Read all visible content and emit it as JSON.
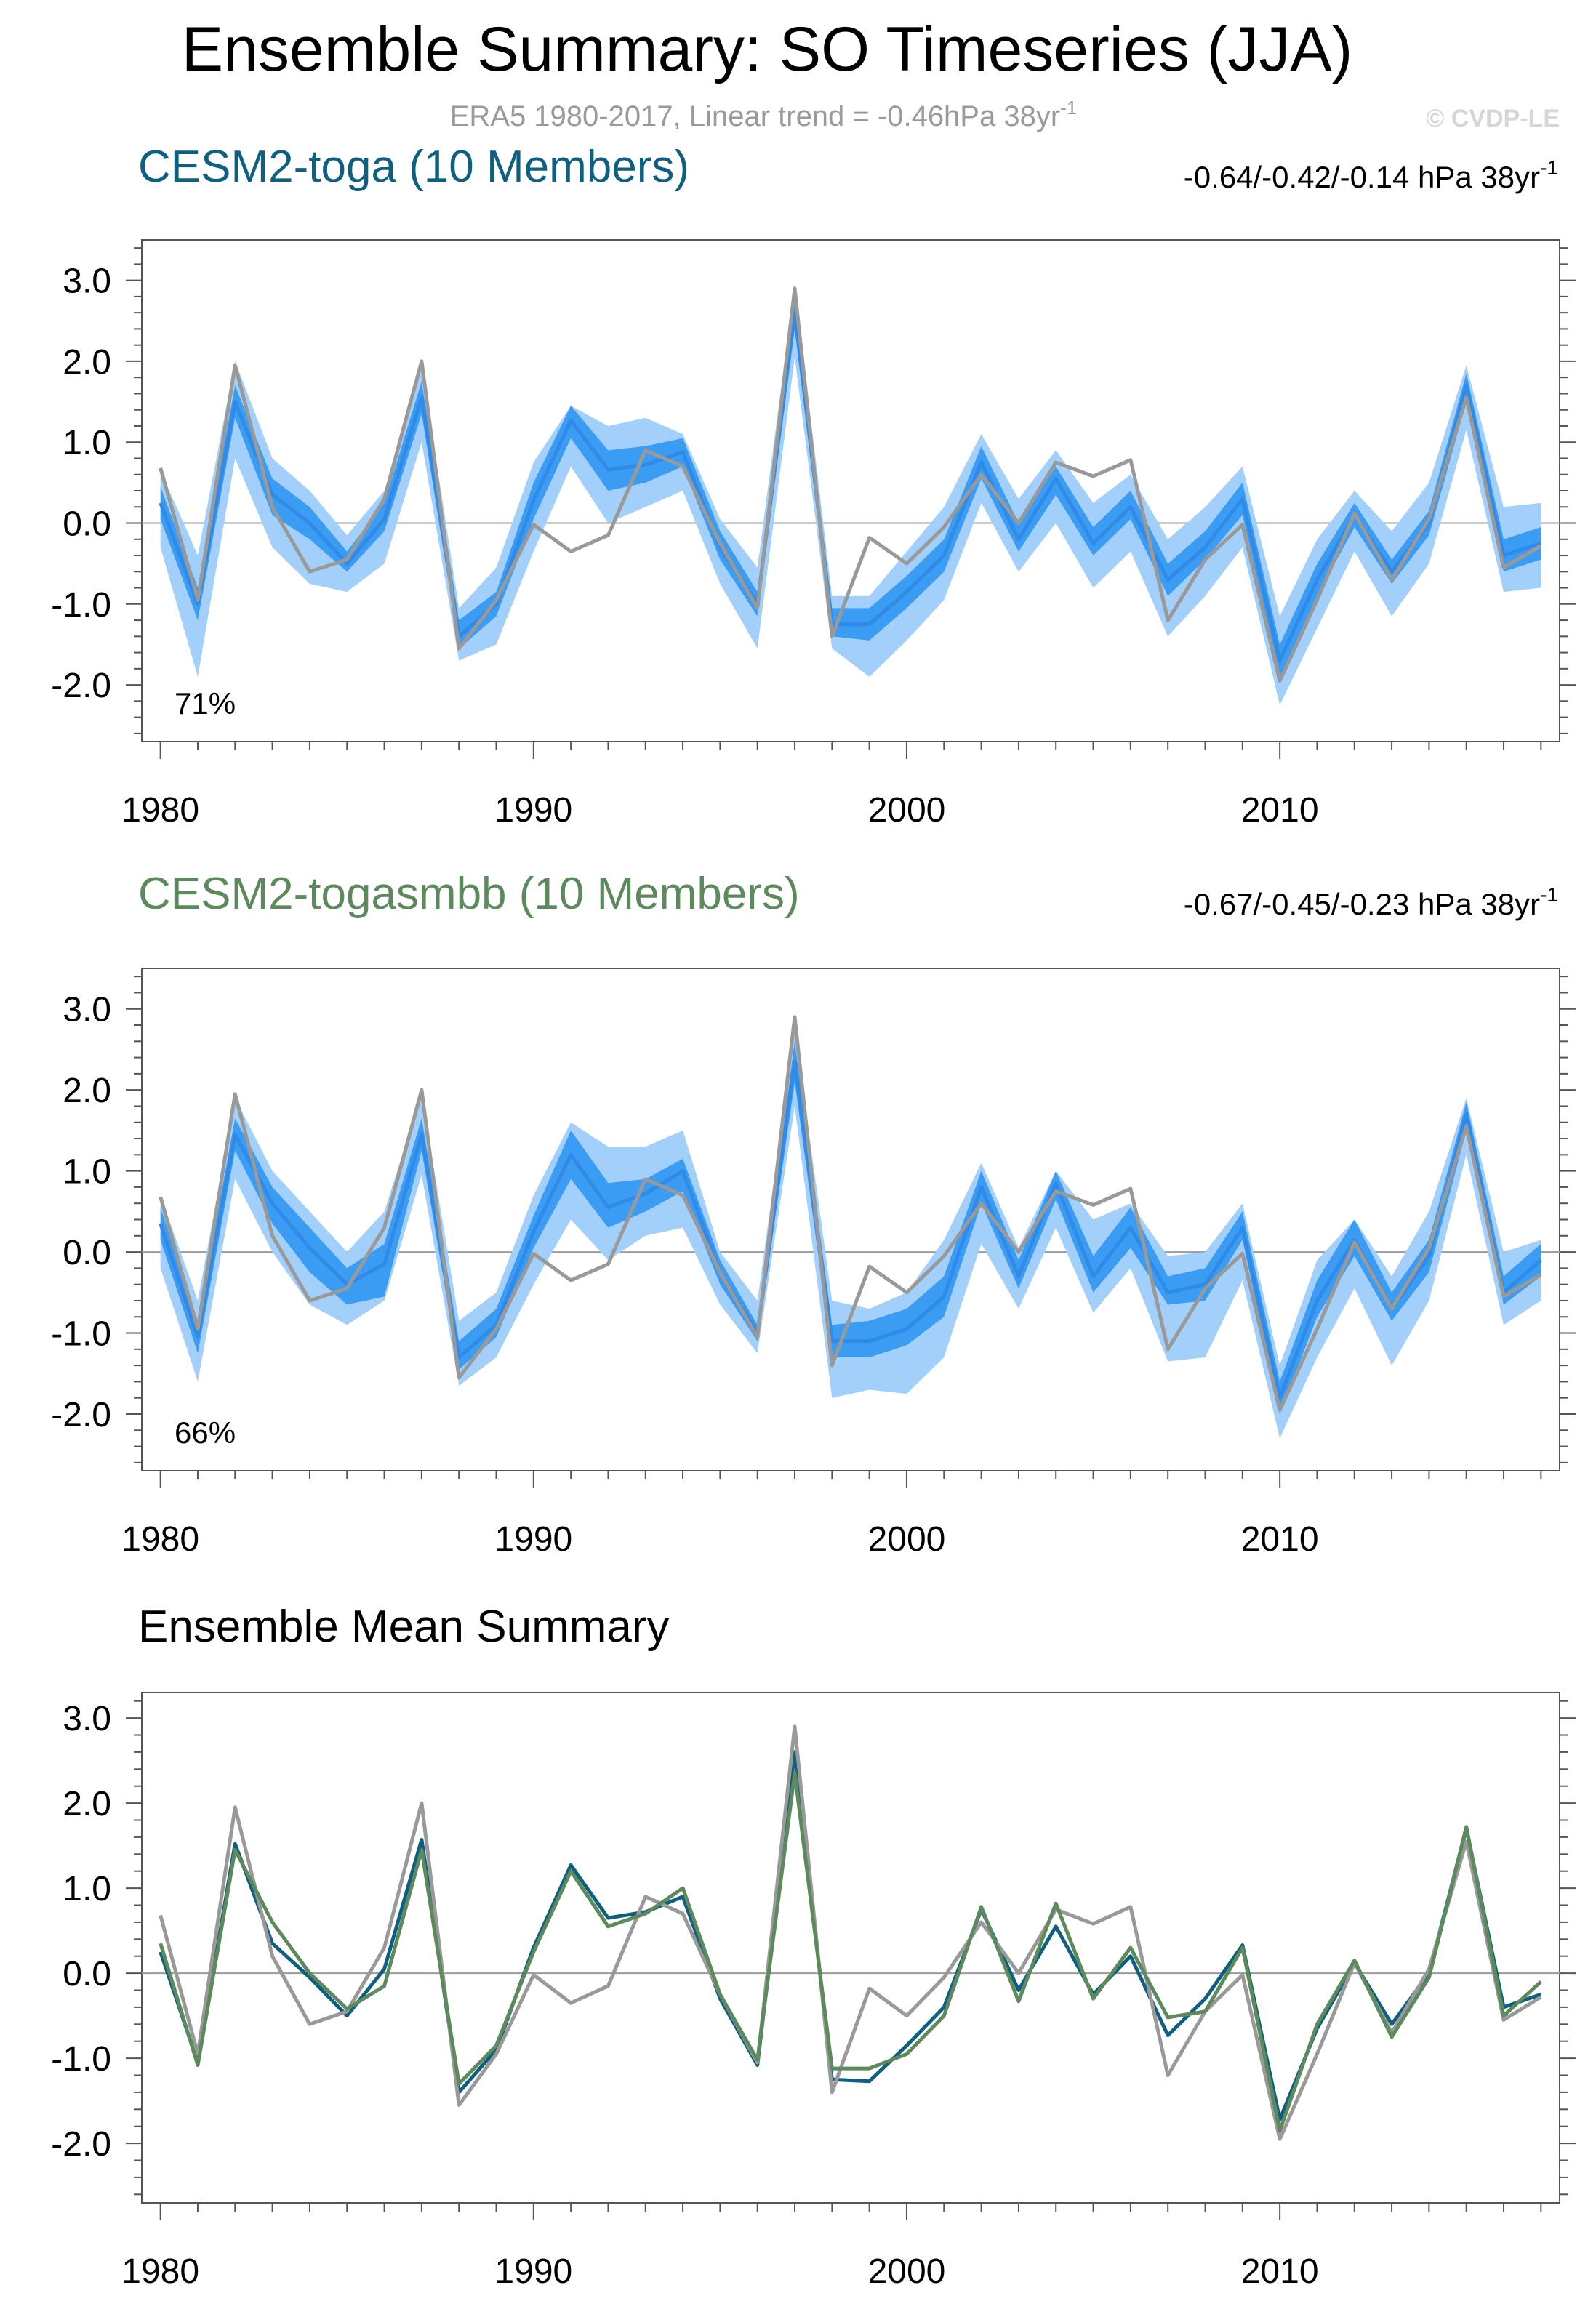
{
  "header": {
    "title": "Ensemble Summary: SO Timeseries (JJA)",
    "subtitle": "ERA5 1980-2017, Linear trend = -0.46hPa 38yr",
    "subtitle_sup": "-1",
    "watermark": "© CVDP-LE"
  },
  "colors": {
    "obs": "#999999",
    "band_outer": "#a3d0fa",
    "band_inner": "#3b9cf3",
    "ens_mean": "#2f8ae8",
    "toga": "#0f6080",
    "togasmbb": "#5c8a5c",
    "zero_line": "#9a9a9a"
  },
  "panels": [
    {
      "id": "toga",
      "title": "CESM2-toga (10 Members)",
      "title_color": "#0f6080",
      "trend_text": "-0.64/-0.42/-0.14 hPa 38yr",
      "trend_sup": "-1",
      "pct": "71%"
    },
    {
      "id": "togasmbb",
      "title": "CESM2-togasmbb (10 Members)",
      "title_color": "#5c8a5c",
      "trend_text": "-0.67/-0.45/-0.23 hPa 38yr",
      "trend_sup": "-1",
      "pct": "66%"
    },
    {
      "id": "summary",
      "title": "Ensemble Mean Summary",
      "title_color": "#000000"
    }
  ],
  "chart_data": [
    {
      "type": "line",
      "title": "CESM2-toga (10 Members)",
      "x": [
        1980,
        1981,
        1982,
        1983,
        1984,
        1985,
        1986,
        1987,
        1988,
        1989,
        1990,
        1991,
        1992,
        1993,
        1994,
        1995,
        1996,
        1997,
        1998,
        1999,
        2000,
        2001,
        2002,
        2003,
        2004,
        2005,
        2006,
        2007,
        2008,
        2009,
        2010,
        2011,
        2012,
        2013,
        2014,
        2015,
        2016,
        2017
      ],
      "xlim": [
        1979.5,
        2017.5
      ],
      "xticks": [
        "1980",
        "1990",
        "2000",
        "2010"
      ],
      "ylim": [
        -2.7,
        3.5
      ],
      "yticks": [
        "3.0",
        "2.0",
        "1.0",
        "0.0",
        "-1.0",
        "-2.0"
      ],
      "series": [
        {
          "name": "ERA5",
          "values": [
            0.68,
            -0.95,
            1.95,
            0.2,
            -0.6,
            -0.45,
            0.3,
            2.0,
            -1.55,
            -0.95,
            -0.02,
            -0.35,
            -0.15,
            0.9,
            0.7,
            -0.25,
            -1.05,
            2.9,
            -1.4,
            -0.18,
            -0.5,
            -0.05,
            0.6,
            0.0,
            0.75,
            0.58,
            0.78,
            -1.2,
            -0.45,
            -0.02,
            -1.95,
            -0.95,
            0.12,
            -0.7,
            0.05,
            1.55,
            -0.55,
            -0.28
          ]
        },
        {
          "name": "ensemble-mean",
          "values": [
            0.25,
            -1.0,
            1.5,
            0.35,
            0.0,
            -0.5,
            0.05,
            1.55,
            -1.4,
            -1.0,
            0.28,
            1.27,
            0.66,
            0.72,
            0.88,
            -0.3,
            -1.0,
            2.6,
            -1.25,
            -1.25,
            -0.85,
            -0.4,
            0.75,
            -0.2,
            0.55,
            -0.25,
            0.2,
            -0.7,
            -0.3,
            0.3,
            -1.7,
            -0.7,
            0.1,
            -0.6,
            0.0,
            1.7,
            -0.4,
            -0.25
          ]
        },
        {
          "name": "inner-band",
          "low": [
            0.05,
            -1.2,
            1.3,
            0.1,
            -0.2,
            -0.6,
            -0.1,
            1.35,
            -1.55,
            -1.15,
            0.05,
            1.05,
            0.4,
            0.5,
            0.7,
            -0.45,
            -1.15,
            2.4,
            -1.4,
            -1.45,
            -1.05,
            -0.6,
            0.55,
            -0.35,
            0.35,
            -0.4,
            0.05,
            -0.9,
            -0.45,
            0.1,
            -1.9,
            -0.9,
            -0.05,
            -0.75,
            -0.15,
            1.5,
            -0.6,
            -0.45
          ],
          "high": [
            0.45,
            -0.8,
            1.7,
            0.55,
            0.2,
            -0.35,
            0.25,
            1.75,
            -1.2,
            -0.85,
            0.5,
            1.45,
            0.9,
            0.95,
            1.05,
            -0.1,
            -0.85,
            2.75,
            -1.05,
            -1.05,
            -0.65,
            -0.2,
            0.95,
            0.0,
            0.7,
            -0.05,
            0.4,
            -0.5,
            -0.1,
            0.5,
            -1.5,
            -0.5,
            0.25,
            -0.45,
            0.15,
            1.85,
            -0.2,
            -0.05
          ]
        },
        {
          "name": "outer-band",
          "low": [
            -0.3,
            -1.9,
            0.8,
            -0.3,
            -0.75,
            -0.85,
            -0.5,
            1.0,
            -1.7,
            -1.5,
            -0.35,
            0.7,
            0.0,
            0.2,
            0.4,
            -0.75,
            -1.55,
            2.05,
            -1.55,
            -1.9,
            -1.45,
            -0.95,
            0.25,
            -0.6,
            0.0,
            -0.8,
            -0.35,
            -1.4,
            -0.9,
            -0.3,
            -2.25,
            -1.3,
            -0.35,
            -1.15,
            -0.5,
            1.15,
            -0.85,
            -0.8
          ],
          "high": [
            0.65,
            -0.4,
            2.0,
            0.8,
            0.4,
            -0.15,
            0.4,
            1.95,
            -1.05,
            -0.55,
            0.75,
            1.45,
            1.2,
            1.3,
            1.1,
            0.05,
            -0.55,
            2.95,
            -0.9,
            -0.9,
            -0.35,
            0.2,
            1.1,
            0.3,
            0.9,
            0.25,
            0.6,
            -0.2,
            0.2,
            0.7,
            -1.15,
            -0.2,
            0.4,
            -0.1,
            0.5,
            1.95,
            0.2,
            0.25
          ]
        }
      ]
    },
    {
      "type": "line",
      "title": "CESM2-togasmbb (10 Members)",
      "x": [
        1980,
        1981,
        1982,
        1983,
        1984,
        1985,
        1986,
        1987,
        1988,
        1989,
        1990,
        1991,
        1992,
        1993,
        1994,
        1995,
        1996,
        1997,
        1998,
        1999,
        2000,
        2001,
        2002,
        2003,
        2004,
        2005,
        2006,
        2007,
        2008,
        2009,
        2010,
        2011,
        2012,
        2013,
        2014,
        2015,
        2016,
        2017
      ],
      "xlim": [
        1979.5,
        2017.5
      ],
      "xticks": [
        "1980",
        "1990",
        "2000",
        "2010"
      ],
      "ylim": [
        -2.7,
        3.5
      ],
      "yticks": [
        "3.0",
        "2.0",
        "1.0",
        "0.0",
        "-1.0",
        "-2.0"
      ],
      "series": [
        {
          "name": "ERA5",
          "values": [
            0.68,
            -0.95,
            1.95,
            0.2,
            -0.6,
            -0.45,
            0.3,
            2.0,
            -1.55,
            -0.95,
            -0.02,
            -0.35,
            -0.15,
            0.9,
            0.7,
            -0.25,
            -1.05,
            2.9,
            -1.4,
            -0.18,
            -0.5,
            -0.05,
            0.6,
            0.0,
            0.75,
            0.58,
            0.78,
            -1.2,
            -0.45,
            -0.02,
            -1.95,
            -0.95,
            0.12,
            -0.7,
            0.05,
            1.55,
            -0.55,
            -0.28
          ]
        },
        {
          "name": "ensemble-mean",
          "values": [
            0.35,
            -1.05,
            1.45,
            0.6,
            0.05,
            -0.4,
            -0.15,
            1.45,
            -1.3,
            -0.9,
            0.25,
            1.2,
            0.55,
            0.72,
            1.0,
            -0.25,
            -1.0,
            2.35,
            -1.1,
            -1.1,
            -0.95,
            -0.55,
            0.8,
            -0.3,
            0.85,
            -0.3,
            0.3,
            -0.5,
            -0.4,
            0.3,
            -1.8,
            -0.6,
            0.15,
            -0.7,
            -0.05,
            1.7,
            -0.5,
            -0.1
          ]
        },
        {
          "name": "inner-band",
          "low": [
            0.15,
            -1.25,
            1.25,
            0.35,
            -0.25,
            -0.65,
            -0.55,
            1.25,
            -1.45,
            -1.05,
            0.05,
            0.9,
            0.3,
            0.5,
            0.75,
            -0.4,
            -1.1,
            2.1,
            -1.3,
            -1.3,
            -1.15,
            -0.8,
            0.6,
            -0.45,
            0.65,
            -0.5,
            0.05,
            -0.65,
            -0.6,
            0.15,
            -2.0,
            -0.8,
            -0.05,
            -0.85,
            -0.25,
            1.5,
            -0.65,
            -0.3
          ],
          "high": [
            0.55,
            -0.85,
            1.65,
            0.8,
            0.3,
            -0.2,
            0.1,
            1.65,
            -1.1,
            -0.7,
            0.45,
            1.5,
            0.85,
            0.9,
            1.15,
            -0.1,
            -0.9,
            2.6,
            -0.9,
            -0.85,
            -0.7,
            -0.3,
            1.0,
            -0.1,
            1.0,
            -0.05,
            0.55,
            -0.3,
            -0.2,
            0.5,
            -1.6,
            -0.35,
            0.4,
            -0.5,
            0.15,
            1.85,
            -0.3,
            0.1
          ]
        },
        {
          "name": "outer-band",
          "low": [
            -0.2,
            -1.6,
            0.9,
            0.0,
            -0.65,
            -0.9,
            -0.6,
            0.95,
            -1.65,
            -1.3,
            -0.4,
            0.4,
            -0.1,
            0.2,
            0.3,
            -0.65,
            -1.25,
            1.8,
            -1.8,
            -1.7,
            -1.75,
            -1.3,
            0.1,
            -0.7,
            0.3,
            -0.75,
            -0.2,
            -1.35,
            -1.3,
            -0.35,
            -2.3,
            -1.3,
            -0.45,
            -1.4,
            -0.6,
            1.2,
            -0.9,
            -0.6
          ],
          "high": [
            0.7,
            -0.6,
            1.9,
            1.0,
            0.5,
            0.0,
            0.5,
            1.95,
            -0.85,
            -0.5,
            0.7,
            1.6,
            1.3,
            1.3,
            1.5,
            0.0,
            -0.6,
            2.75,
            -0.6,
            -0.7,
            -0.5,
            0.15,
            1.1,
            0.05,
            1.0,
            0.4,
            0.6,
            -0.05,
            0.0,
            0.6,
            -1.4,
            -0.1,
            0.4,
            -0.3,
            0.5,
            1.9,
            0.0,
            0.15
          ]
        }
      ]
    },
    {
      "type": "line",
      "title": "Ensemble Mean Summary",
      "x": [
        1980,
        1981,
        1982,
        1983,
        1984,
        1985,
        1986,
        1987,
        1988,
        1989,
        1990,
        1991,
        1992,
        1993,
        1994,
        1995,
        1996,
        1997,
        1998,
        1999,
        2000,
        2001,
        2002,
        2003,
        2004,
        2005,
        2006,
        2007,
        2008,
        2009,
        2010,
        2011,
        2012,
        2013,
        2014,
        2015,
        2016,
        2017
      ],
      "xlim": [
        1979.5,
        2017.5
      ],
      "xticks": [
        "1980",
        "1990",
        "2000",
        "2010"
      ],
      "ylim": [
        -2.7,
        3.3
      ],
      "yticks": [
        "3.0",
        "2.0",
        "1.0",
        "0.0",
        "-1.0",
        "-2.0"
      ],
      "series": [
        {
          "name": "ERA5",
          "values": [
            0.68,
            -0.95,
            1.95,
            0.2,
            -0.6,
            -0.45,
            0.3,
            2.0,
            -1.55,
            -0.95,
            -0.02,
            -0.35,
            -0.15,
            0.9,
            0.7,
            -0.25,
            -1.05,
            2.9,
            -1.4,
            -0.18,
            -0.5,
            -0.05,
            0.6,
            0.0,
            0.75,
            0.58,
            0.78,
            -1.2,
            -0.45,
            -0.02,
            -1.95,
            -0.95,
            0.12,
            -0.7,
            0.05,
            1.55,
            -0.55,
            -0.28
          ]
        },
        {
          "name": "CESM2-toga",
          "values": [
            0.25,
            -1.05,
            1.52,
            0.35,
            -0.05,
            -0.5,
            0.05,
            1.57,
            -1.4,
            -0.9,
            0.3,
            1.27,
            0.65,
            0.72,
            0.9,
            -0.3,
            -1.08,
            2.6,
            -1.25,
            -1.27,
            -0.85,
            -0.4,
            0.75,
            -0.2,
            0.55,
            -0.25,
            0.2,
            -0.73,
            -0.3,
            0.33,
            -1.72,
            -0.65,
            0.12,
            -0.6,
            0.0,
            1.7,
            -0.4,
            -0.25
          ]
        },
        {
          "name": "CESM2-togasmbb",
          "values": [
            0.35,
            -1.08,
            1.45,
            0.6,
            0.0,
            -0.42,
            -0.15,
            1.45,
            -1.3,
            -0.85,
            0.25,
            1.2,
            0.55,
            0.7,
            1.0,
            -0.25,
            -1.02,
            2.35,
            -1.12,
            -1.12,
            -0.95,
            -0.5,
            0.78,
            -0.33,
            0.82,
            -0.3,
            0.3,
            -0.52,
            -0.45,
            0.3,
            -1.85,
            -0.6,
            0.15,
            -0.75,
            -0.05,
            1.72,
            -0.5,
            -0.1
          ]
        }
      ]
    }
  ]
}
